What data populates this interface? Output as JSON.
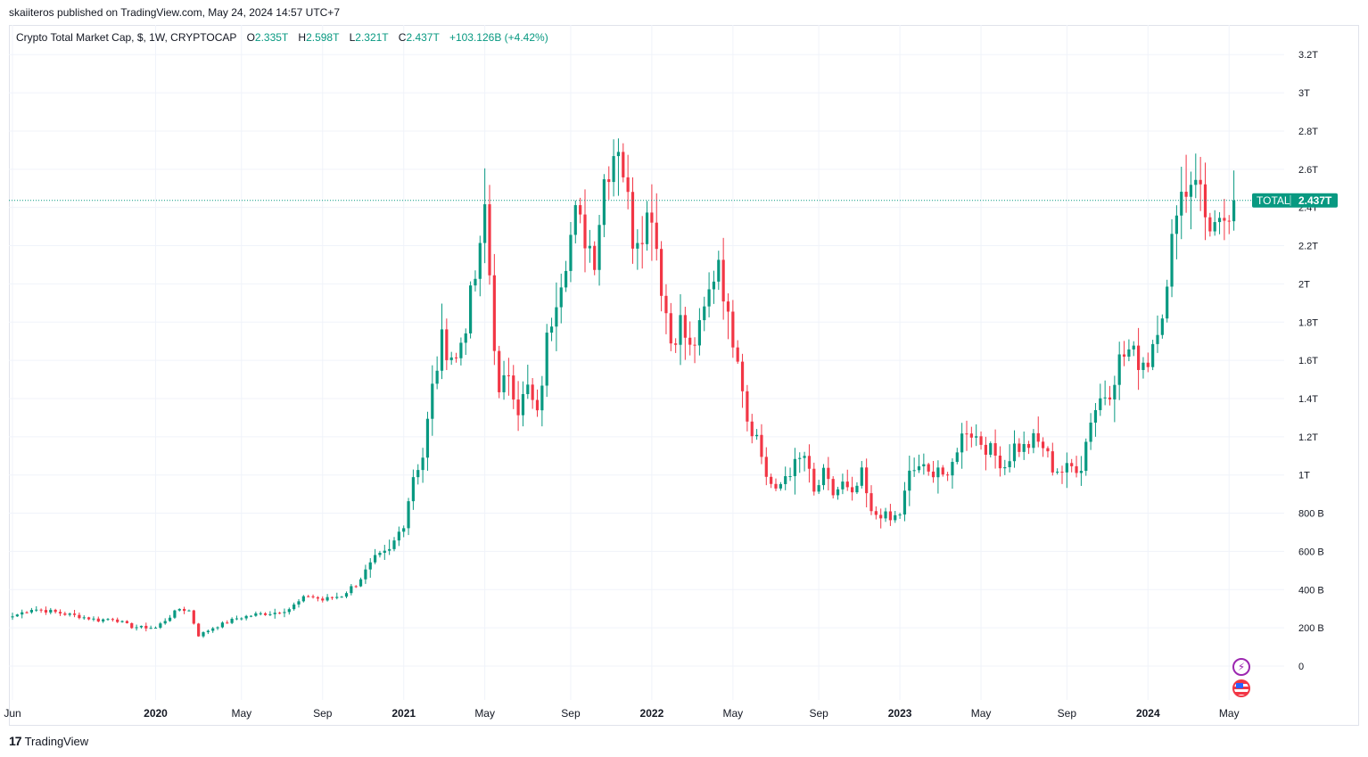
{
  "header": {
    "publisher_line": "skaiiteros published on TradingView.com, May 24, 2024 14:57 UTC+7"
  },
  "legend": {
    "symbol": "Crypto Total Market Cap, $, 1W, CRYPTOCAP",
    "open_label": "O",
    "open_value": "2.335T",
    "high_label": "H",
    "high_value": "2.598T",
    "low_label": "L",
    "low_value": "2.321T",
    "close_label": "C",
    "close_value": "2.437T",
    "change": "+103.126B (+4.42%)"
  },
  "price_tag": {
    "name": "TOTAL",
    "value": "2.437T"
  },
  "footer": {
    "brand": "TradingView"
  },
  "icons": [
    "flash-icon",
    "us-flag-icon",
    "tradingview-logo-icon"
  ],
  "colors": {
    "up": "#089981",
    "down": "#f23645",
    "grid": "#f0f3fa",
    "text": "#131722"
  },
  "chart_data": {
    "type": "candlestick",
    "interval": "1W",
    "unit": "USD",
    "y_ticks": [
      {
        "v": 0,
        "label": "0"
      },
      {
        "v": 200,
        "label": "200 B"
      },
      {
        "v": 400,
        "label": "400 B"
      },
      {
        "v": 600,
        "label": "600 B"
      },
      {
        "v": 800,
        "label": "800 B"
      },
      {
        "v": 1000,
        "label": "1T"
      },
      {
        "v": 1200,
        "label": "1.2T"
      },
      {
        "v": 1400,
        "label": "1.4T"
      },
      {
        "v": 1600,
        "label": "1.6T"
      },
      {
        "v": 1800,
        "label": "1.8T"
      },
      {
        "v": 2000,
        "label": "2T"
      },
      {
        "v": 2200,
        "label": "2.2T"
      },
      {
        "v": 2400,
        "label": "2.4T"
      },
      {
        "v": 2600,
        "label": "2.6T"
      },
      {
        "v": 2800,
        "label": "2.8T"
      },
      {
        "v": 3000,
        "label": "3T"
      },
      {
        "v": 3200,
        "label": "3.2T"
      }
    ],
    "x_ticks": [
      {
        "t": 0,
        "label": "Jun",
        "bold": false
      },
      {
        "t": 30,
        "label": "2020",
        "bold": true
      },
      {
        "t": 48,
        "label": "May",
        "bold": false
      },
      {
        "t": 65,
        "label": "Sep",
        "bold": false
      },
      {
        "t": 82,
        "label": "2021",
        "bold": true
      },
      {
        "t": 99,
        "label": "May",
        "bold": false
      },
      {
        "t": 117,
        "label": "Sep",
        "bold": false
      },
      {
        "t": 134,
        "label": "2022",
        "bold": true
      },
      {
        "t": 151,
        "label": "May",
        "bold": false
      },
      {
        "t": 169,
        "label": "Sep",
        "bold": false
      },
      {
        "t": 186,
        "label": "2023",
        "bold": true
      },
      {
        "t": 203,
        "label": "May",
        "bold": false
      },
      {
        "t": 221,
        "label": "Sep",
        "bold": false
      },
      {
        "t": 238,
        "label": "2024",
        "bold": true
      },
      {
        "t": 255,
        "label": "May",
        "bold": false
      }
    ],
    "last_close": 2437,
    "anchors": [
      [
        0,
        260
      ],
      [
        4,
        300
      ],
      [
        7,
        290
      ],
      [
        14,
        260
      ],
      [
        18,
        240
      ],
      [
        21,
        250
      ],
      [
        25,
        205
      ],
      [
        30,
        200
      ],
      [
        35,
        300
      ],
      [
        37,
        290
      ],
      [
        39,
        160
      ],
      [
        42,
        200
      ],
      [
        47,
        250
      ],
      [
        51,
        270
      ],
      [
        55,
        280
      ],
      [
        58,
        300
      ],
      [
        62,
        370
      ],
      [
        65,
        345
      ],
      [
        69,
        370
      ],
      [
        72,
        430
      ],
      [
        76,
        560
      ],
      [
        79,
        600
      ],
      [
        82,
        750
      ],
      [
        84,
        1000
      ],
      [
        86,
        1100
      ],
      [
        88,
        1450
      ],
      [
        90,
        1700
      ],
      [
        93,
        1600
      ],
      [
        95,
        1800
      ],
      [
        98,
        2150
      ],
      [
        99,
        2400
      ],
      [
        101,
        1700
      ],
      [
        102,
        1400
      ],
      [
        104,
        1550
      ],
      [
        106,
        1350
      ],
      [
        108,
        1450
      ],
      [
        110,
        1300
      ],
      [
        112,
        1700
      ],
      [
        114,
        1950
      ],
      [
        116,
        2150
      ],
      [
        118,
        2350
      ],
      [
        120,
        2250
      ],
      [
        122,
        2150
      ],
      [
        124,
        2550
      ],
      [
        126,
        2700
      ],
      [
        127,
        2750
      ],
      [
        128,
        2600
      ],
      [
        130,
        2250
      ],
      [
        132,
        2300
      ],
      [
        134,
        2400
      ],
      [
        136,
        2000
      ],
      [
        138,
        1700
      ],
      [
        140,
        1800
      ],
      [
        142,
        1650
      ],
      [
        144,
        1750
      ],
      [
        146,
        1950
      ],
      [
        148,
        2150
      ],
      [
        150,
        1800
      ],
      [
        152,
        1650
      ],
      [
        154,
        1300
      ],
      [
        156,
        1200
      ],
      [
        158,
        1000
      ],
      [
        160,
        900
      ],
      [
        162,
        1000
      ],
      [
        164,
        1050
      ],
      [
        166,
        1100
      ],
      [
        168,
        900
      ],
      [
        170,
        1000
      ],
      [
        172,
        900
      ],
      [
        174,
        950
      ],
      [
        176,
        880
      ],
      [
        178,
        1000
      ],
      [
        180,
        790
      ],
      [
        182,
        800
      ],
      [
        184,
        760
      ],
      [
        186,
        800
      ],
      [
        188,
        1000
      ],
      [
        190,
        1050
      ],
      [
        192,
        1000
      ],
      [
        194,
        1050
      ],
      [
        196,
        960
      ],
      [
        198,
        1150
      ],
      [
        200,
        1250
      ],
      [
        202,
        1200
      ],
      [
        204,
        1150
      ],
      [
        206,
        1100
      ],
      [
        208,
        1050
      ],
      [
        210,
        1150
      ],
      [
        212,
        1140
      ],
      [
        214,
        1180
      ],
      [
        216,
        1150
      ],
      [
        218,
        1040
      ],
      [
        220,
        1020
      ],
      [
        222,
        1040
      ],
      [
        224,
        1050
      ],
      [
        226,
        1300
      ],
      [
        228,
        1400
      ],
      [
        230,
        1450
      ],
      [
        232,
        1600
      ],
      [
        234,
        1650
      ],
      [
        236,
        1600
      ],
      [
        238,
        1600
      ],
      [
        240,
        1800
      ],
      [
        242,
        1950
      ],
      [
        243,
        2200
      ],
      [
        244,
        2450
      ],
      [
        246,
        2500
      ],
      [
        248,
        2600
      ],
      [
        250,
        2350
      ],
      [
        252,
        2300
      ],
      [
        254,
        2250
      ],
      [
        255,
        2350
      ],
      [
        256,
        2437
      ]
    ]
  }
}
